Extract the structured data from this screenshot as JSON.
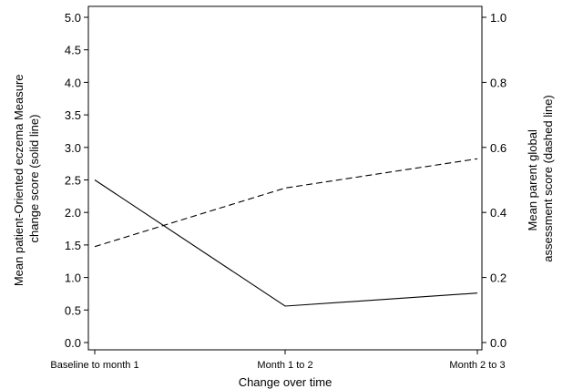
{
  "chart_data": {
    "type": "line",
    "categories": [
      "Baseline to month 1",
      "Month 1 to 2",
      "Month 2 to 3"
    ],
    "xlabel": "Change over time",
    "ylabel_left": [
      "Mean patient-Oriented eczema Measure",
      "change score (solid line)"
    ],
    "ylabel_right": [
      "Mean parent global",
      "assessment score (dashed line)"
    ],
    "y_left": {
      "range": [
        0,
        5
      ],
      "ticks": [
        "0.0",
        "0.5",
        "1.0",
        "1.5",
        "2.0",
        "2.5",
        "3.0",
        "3.5",
        "4.0",
        "4.5",
        "5.0"
      ]
    },
    "y_right": {
      "range": [
        0,
        1
      ],
      "ticks": [
        "0.0",
        "0.2",
        "0.4",
        "0.6",
        "0.8",
        "1.0"
      ]
    },
    "series": [
      {
        "axis": "left",
        "style": "solid",
        "values": [
          2.5,
          0.56,
          0.76
        ]
      },
      {
        "axis": "right",
        "style": "dashed",
        "values": [
          0.295,
          0.475,
          0.565
        ]
      }
    ],
    "grid": false,
    "legend": "none"
  }
}
